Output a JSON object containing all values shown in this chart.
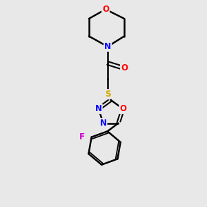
{
  "background_color": "#e8e8e8",
  "bond_color": "#000000",
  "atom_colors": {
    "O": "#ff0000",
    "N": "#0000ff",
    "S": "#ccaa00",
    "F": "#cc00cc",
    "C": "#000000"
  },
  "figsize": [
    3.0,
    3.0
  ],
  "dpi": 100
}
